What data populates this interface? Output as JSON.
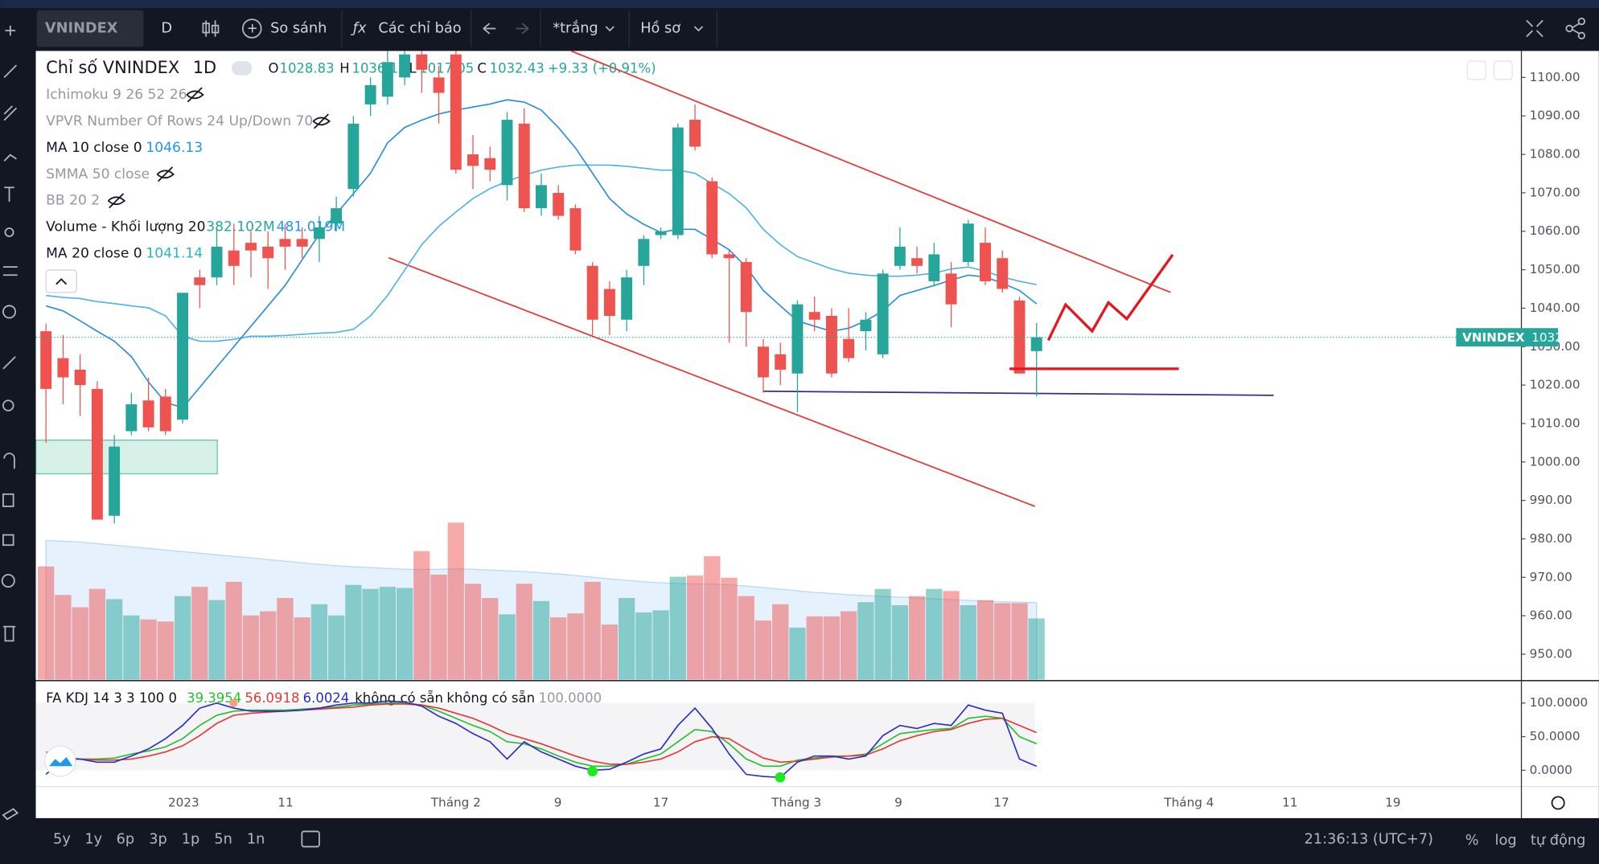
{
  "toolbar": {
    "symbol": "VNINDEX",
    "interval": "D",
    "compare": "So sánh",
    "indicators": "Các chỉ báo",
    "template": "*trắng",
    "profile": "Hồ sơ"
  },
  "legend": {
    "title": "Chỉ số VNINDEX",
    "interval": "1D",
    "o": "O",
    "h": "H",
    "l": "L",
    "c": "C",
    "change": "+9.33 (+0.91%)",
    "ichimoku": "Ichimoku 9 26 52 26",
    "vpvr": "VPVR Number Of Rows 24 Up/Down 70",
    "smma": "SMMA 50 close",
    "bb": "BB 20 2"
  },
  "bottom_bar": {
    "ranges": [
      "5y",
      "1y",
      "6p",
      "3p",
      "1p",
      "5n",
      "1n"
    ],
    "time": "21:36:13 (UTC+7)",
    "percent": "%",
    "log": "log",
    "auto": "tự động"
  },
  "chart_data": {
    "type": "candlestick",
    "up_color": "#26a69a",
    "down_color": "#ef5350",
    "x_labels": [
      "2023",
      "11",
      "Tháng 2",
      "9",
      "17",
      "Tháng 3",
      "9",
      "17",
      "Tháng 4",
      "11",
      "19"
    ],
    "open": [
      1034,
      1027,
      1024,
      1019,
      986,
      1008,
      1016,
      1017,
      1011,
      1048,
      1048,
      1055,
      1057,
      1056,
      1058,
      1058,
      1058,
      1062,
      1071,
      1093,
      1095,
      1100,
      1106,
      1100,
      1106,
      1080,
      1079,
      1072,
      1088,
      1066,
      1070,
      1066,
      1051,
      1045,
      1037,
      1051,
      1059,
      1059,
      1089,
      1073,
      1054,
      1052,
      1030,
      1028,
      1023,
      1039,
      1038,
      1032,
      1034,
      1028,
      1051,
      1053,
      1047,
      1049,
      1052,
      1057,
      1053,
      1042,
      1028.83
    ],
    "high": [
      1036,
      1033,
      1028,
      1021,
      1007,
      1018,
      1022,
      1019,
      1044,
      1050,
      1061,
      1062,
      1060,
      1060,
      1062,
      1061,
      1064,
      1069,
      1090,
      1100,
      1108,
      1110,
      1110,
      1103,
      1108,
      1085,
      1082,
      1091,
      1092,
      1075,
      1072,
      1067,
      1052,
      1047,
      1050,
      1059,
      1061,
      1088,
      1093,
      1074,
      1055,
      1053,
      1032,
      1031,
      1042,
      1043,
      1040,
      1040,
      1039,
      1050,
      1061,
      1056,
      1057,
      1052,
      1063,
      1061,
      1055,
      1043,
      1036.15
    ],
    "low": [
      1005,
      1015,
      1012,
      985,
      984,
      1007,
      1008,
      1007,
      1010,
      1040,
      1046,
      1046,
      1048,
      1045,
      1050,
      1053,
      1052,
      1060,
      1069,
      1090,
      1093,
      1098,
      1096,
      1088,
      1075,
      1071,
      1073,
      1068,
      1065,
      1064,
      1063,
      1054,
      1033,
      1033,
      1034,
      1046,
      1058,
      1058,
      1081,
      1053,
      1031,
      1030,
      1018,
      1020,
      1013,
      1034,
      1022,
      1026,
      1029,
      1027,
      1050,
      1049,
      1046,
      1035,
      1051,
      1046,
      1044,
      1023,
      1017.05
    ],
    "close": [
      1019,
      1022,
      1020,
      985,
      1004,
      1015,
      1009,
      1008,
      1044,
      1046,
      1056,
      1051,
      1055,
      1053,
      1056,
      1056,
      1061,
      1066,
      1088,
      1098,
      1104,
      1106,
      1102,
      1096,
      1076,
      1077,
      1076,
      1089,
      1066,
      1072,
      1064,
      1055,
      1037,
      1038,
      1048,
      1058,
      1060,
      1087,
      1082,
      1054,
      1053,
      1039,
      1022,
      1024,
      1041,
      1037,
      1023,
      1027,
      1037,
      1049,
      1056,
      1051,
      1054,
      1041,
      1062,
      1047,
      1045,
      1023,
      1032.43
    ],
    "ylim": [
      943.4,
      1106.9
    ],
    "yticks": [
      {
        "value": 1100,
        "label": "1100.00"
      },
      {
        "value": 1090,
        "label": "1090.00"
      },
      {
        "value": 1080,
        "label": "1080.00"
      },
      {
        "value": 1070,
        "label": "1070.00"
      },
      {
        "value": 1060,
        "label": "1060.00"
      },
      {
        "value": 1050,
        "label": "1050.00"
      },
      {
        "value": 1040,
        "label": "1040.00"
      },
      {
        "value": 1030,
        "label": "1030.00"
      },
      {
        "value": 1020,
        "label": "1020.00"
      },
      {
        "value": 1010,
        "label": "1010.00"
      },
      {
        "value": 1000,
        "label": "1000.00"
      },
      {
        "value": 990,
        "label": "990.00"
      },
      {
        "value": 980,
        "label": "980.00"
      },
      {
        "value": 970,
        "label": "970.00"
      },
      {
        "value": 960,
        "label": "960.00"
      },
      {
        "value": 950,
        "label": "950.00"
      }
    ],
    "series": [
      {
        "name": "MA 10 close 0",
        "color": "#4fb3e8",
        "values": [
          1043.3,
          1042.8,
          1042.5,
          1041.7,
          1041.2,
          1040.6,
          1040.1,
          1038.0,
          1032.7,
          1031.4,
          1031.4,
          1031.9,
          1032.7,
          1032.7,
          1032.9,
          1033.2,
          1033.5,
          1033.7,
          1034.5,
          1038.0,
          1043.3,
          1049.9,
          1056.5,
          1061.3,
          1065.0,
          1068.5,
          1071.1,
          1073.0,
          1074.6,
          1075.9,
          1076.7,
          1077.2,
          1077.2,
          1077.2,
          1076.9,
          1076.4,
          1075.9,
          1075.9,
          1075.1,
          1072.4,
          1069.8,
          1066.1,
          1060.5,
          1056.5,
          1053.4,
          1051.8,
          1050.2,
          1049.1,
          1048.6,
          1048.3,
          1048.3,
          1048.6,
          1049.1,
          1050.2,
          1050.7,
          1049.6,
          1048.1,
          1047.0,
          1046.13
        ]
      },
      {
        "name": "MA 20 close 0",
        "color": "#2a8ed8",
        "values": [
          1040.6,
          1039.3,
          1036.7,
          1034.0,
          1031.4,
          1027.4,
          1020.8,
          1015.5,
          1014.1,
          1019.4,
          1024.7,
          1030.0,
          1035.3,
          1040.6,
          1045.9,
          1052.6,
          1059.2,
          1064.5,
          1069.8,
          1075.1,
          1083.0,
          1087.0,
          1088.9,
          1090.5,
          1091.5,
          1092.3,
          1093.1,
          1094.2,
          1093.6,
          1091.5,
          1087.0,
          1081.7,
          1075.1,
          1068.5,
          1064.5,
          1061.8,
          1059.7,
          1060.5,
          1060.5,
          1057.9,
          1055.2,
          1050.7,
          1044.6,
          1040.6,
          1036.7,
          1035.3,
          1034.0,
          1034.8,
          1036.7,
          1039.3,
          1043.3,
          1044.6,
          1045.9,
          1047.3,
          1048.6,
          1048.1,
          1046.5,
          1044.6,
          1041.14
        ]
      }
    ],
    "volume_name": "Volume - Khối lượng 20",
    "volume": [
      707,
      529,
      452,
      567,
      503,
      401,
      376,
      363,
      522,
      580,
      497,
      611,
      401,
      427,
      510,
      389,
      471,
      401,
      592,
      567,
      580,
      573,
      803,
      656,
      981,
      599,
      510,
      408,
      599,
      491,
      389,
      414,
      611,
      344,
      510,
      420,
      433,
      643,
      650,
      771,
      637,
      522,
      369,
      471,
      325,
      395,
      395,
      427,
      484,
      567,
      465,
      522,
      567,
      554,
      465,
      497,
      478,
      478,
      382.102
    ],
    "volume_label": "382.102M",
    "volume_ma": [
      870,
      865,
      860,
      850,
      840,
      830,
      820,
      810,
      800,
      790,
      780,
      770,
      760,
      750,
      740,
      730,
      720,
      712,
      705,
      700,
      695,
      690,
      688,
      690,
      692,
      690,
      685,
      680,
      675,
      668,
      660,
      650,
      640,
      630,
      620,
      612,
      605,
      600,
      598,
      596,
      592,
      585,
      575,
      565,
      555,
      545,
      538,
      530,
      525,
      520,
      515,
      510,
      505,
      500,
      495,
      490,
      487,
      484,
      481.019
    ],
    "volume_ma_label": "481.019M",
    "kdj": {
      "name": "FA KDJ 14 3 3 100 0",
      "na": [
        "không có sẵn",
        "không có sẵn"
      ],
      "extra": "100.0000",
      "ylim": [
        -24.2,
        130.3
      ],
      "yticks": [
        {
          "value": 100,
          "label": "100.0000"
        },
        {
          "value": 50,
          "label": "50.0000"
        },
        {
          "value": 0,
          "label": "0.0000"
        }
      ],
      "series": [
        {
          "name": "K",
          "color": "#22c22e",
          "values": [
            16.7,
            16.7,
            16.7,
            16.7,
            18.2,
            24.2,
            28.8,
            34.8,
            47.0,
            66.7,
            81.8,
            87.9,
            89.4,
            89.4,
            89.4,
            90.9,
            92.4,
            93.9,
            97.0,
            98.5,
            100.0,
            100.0,
            97.0,
            87.9,
            77.3,
            66.7,
            57.6,
            42.4,
            39.4,
            31.8,
            21.2,
            12.1,
            6.1,
            6.1,
            9.1,
            16.7,
            24.2,
            42.4,
            60.6,
            57.6,
            39.4,
            16.7,
            6.1,
            6.1,
            15.2,
            18.2,
            21.2,
            21.2,
            24.2,
            39.4,
            54.5,
            57.6,
            60.6,
            62.1,
            77.3,
            80.3,
            77.3,
            50.0,
            39.3954
          ]
        },
        {
          "name": "D",
          "color": "#e53935",
          "values": [
            27.3,
            19.7,
            16.7,
            15.2,
            15.2,
            16.7,
            21.2,
            27.3,
            36.4,
            51.5,
            69.7,
            81.8,
            84.8,
            86.4,
            87.9,
            89.4,
            90.9,
            92.4,
            93.9,
            97.0,
            98.5,
            98.5,
            97.0,
            92.4,
            84.8,
            77.3,
            66.7,
            54.5,
            47.0,
            39.4,
            30.3,
            21.2,
            13.6,
            9.1,
            9.1,
            12.1,
            16.7,
            27.3,
            42.4,
            50.0,
            47.0,
            31.8,
            18.2,
            12.1,
            13.6,
            16.7,
            19.7,
            21.2,
            22.7,
            31.8,
            43.9,
            51.5,
            57.6,
            60.6,
            69.7,
            75.8,
            77.3,
            66.7,
            56.0918
          ]
        },
        {
          "name": "J",
          "color": "#2c2cc8",
          "values": [
            -6.1,
            16.7,
            16.7,
            12.1,
            12.1,
            21.2,
            31.8,
            47.0,
            66.7,
            92.4,
            100.0,
            92.4,
            87.9,
            87.9,
            87.9,
            89.4,
            92.4,
            97.0,
            100.0,
            100.0,
            103.0,
            101.5,
            95.4,
            80.3,
            69.7,
            54.5,
            42.4,
            16.7,
            42.4,
            27.3,
            16.7,
            6.1,
            0,
            1.5,
            12.1,
            24.2,
            31.8,
            66.7,
            92.4,
            62.1,
            24.2,
            -6.1,
            -9.1,
            -10.6,
            12.1,
            21.2,
            21.2,
            16.7,
            21.2,
            51.5,
            66.7,
            62.1,
            69.7,
            66.7,
            97.0,
            89.4,
            84.8,
            16.7,
            6.0024
          ]
        }
      ]
    }
  }
}
